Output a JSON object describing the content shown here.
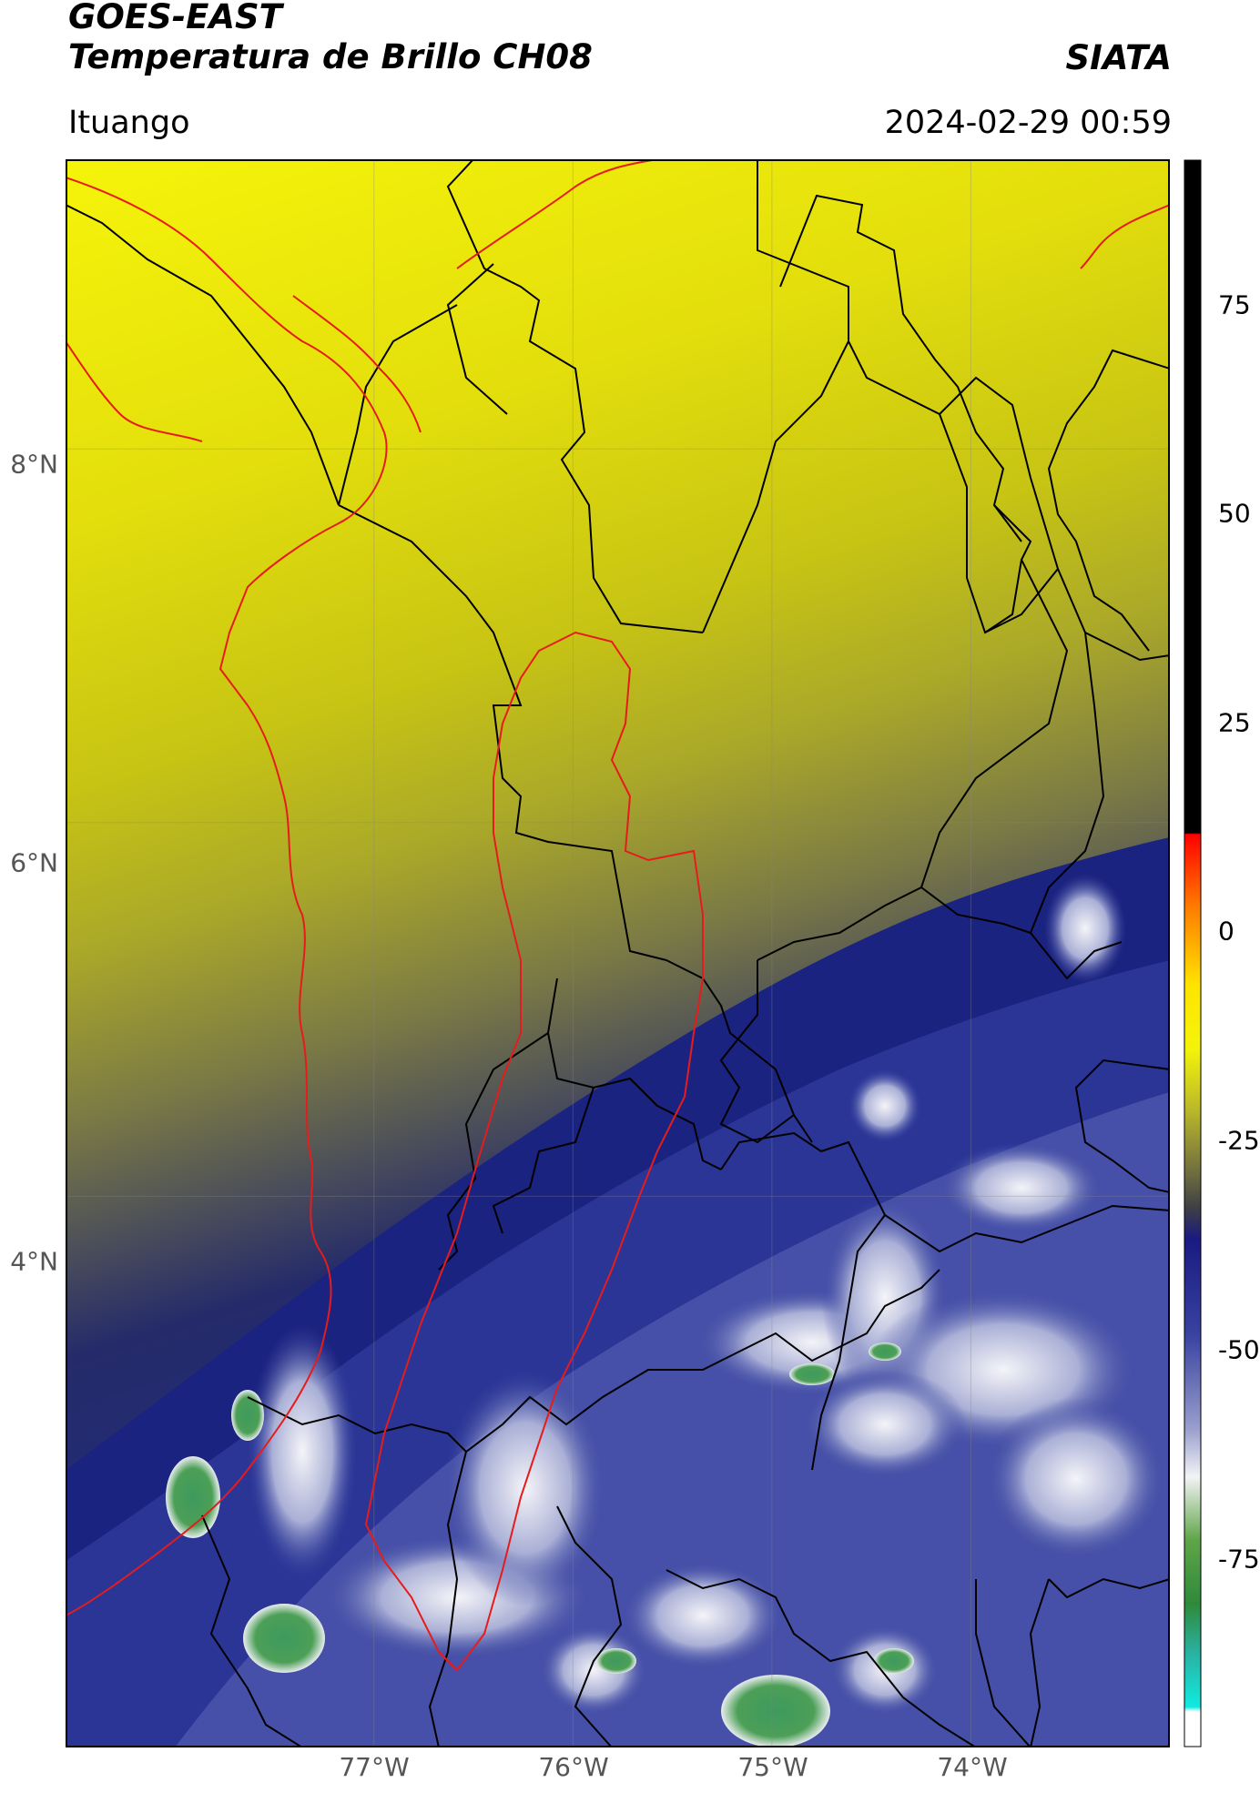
{
  "header": {
    "satellite": "GOES-EAST",
    "product": "Temperatura de Brillo CH08",
    "org": "SIATA",
    "location": "Ituango",
    "datetime": "2024-02-29 00:59"
  },
  "map": {
    "lon_range": [
      -78.55,
      -73.0
    ],
    "lat_range": [
      1.05,
      9.55
    ],
    "lat_labels": [
      "8°N",
      "6°N",
      "4°N"
    ],
    "lon_labels": [
      "77°W",
      "76°W",
      "75°W",
      "74°W"
    ],
    "lat_values": [
      8,
      6,
      4
    ],
    "lon_values": [
      -77,
      -76,
      -75,
      -74
    ],
    "gridlines": true,
    "basin_outline_color": "#e61c1c",
    "coast_outline_color": "#e61c1c",
    "admin_boundaries_color": "#000000"
  },
  "colorbar": {
    "ticks": [
      "75",
      "50",
      "25",
      "0",
      "-25",
      "-50",
      "-75"
    ],
    "tick_values": [
      75,
      50,
      25,
      0,
      -25,
      -50,
      -75
    ],
    "range": [
      -90,
      90
    ],
    "orientation": "vertical",
    "placement": "right"
  }
}
